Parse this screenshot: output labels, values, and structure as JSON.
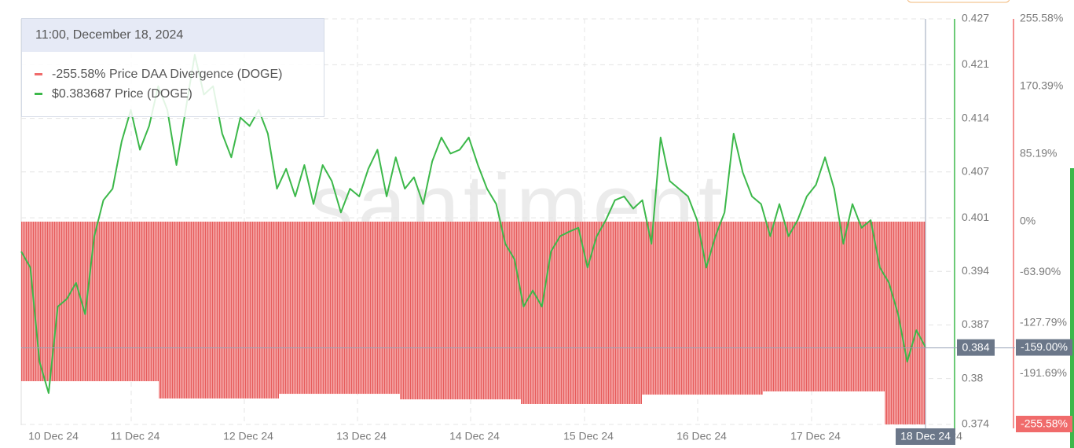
{
  "chart_data": {
    "type": "line",
    "watermark": "santiment",
    "x_labels": [
      "10 Dec 24",
      "11 Dec 24",
      "12 Dec 24",
      "13 Dec 24",
      "14 Dec 24",
      "15 Dec 24",
      "16 Dec 24",
      "17 Dec 24",
      "18 Dec 24"
    ],
    "series": [
      {
        "name": "Price DAA Divergence (DOGE)",
        "color": "#f06b6b",
        "axis": "y2",
        "type": "bar",
        "values": [
          -201.1,
          -222.9,
          -217,
          -224,
          -229.8,
          -218,
          -214,
          -255.58
        ]
      },
      {
        "name": "Price (DOGE)",
        "color": "#3cb84a",
        "type": "line",
        "values": [
          0.3966,
          0.3945,
          0.3822,
          0.3781,
          0.3894,
          0.3904,
          0.3925,
          0.3884,
          0.3986,
          0.4033,
          0.4048,
          0.411,
          0.4151,
          0.4099,
          0.413,
          0.4182,
          0.4151,
          0.4079,
          0.4151,
          0.4223,
          0.4171,
          0.4182,
          0.412,
          0.4089,
          0.4141,
          0.413,
          0.4151,
          0.412,
          0.4048,
          0.4074,
          0.4038,
          0.4079,
          0.4028,
          0.4079,
          0.4058,
          0.4017,
          0.4048,
          0.4038,
          0.4074,
          0.4099,
          0.4038,
          0.4089,
          0.4048,
          0.4063,
          0.4028,
          0.4084,
          0.4115,
          0.4094,
          0.4099,
          0.4115,
          0.4079,
          0.4048,
          0.4028,
          0.3976,
          0.3956,
          0.3894,
          0.3915,
          0.3894,
          0.3966,
          0.3986,
          0.3992,
          0.3997,
          0.3945,
          0.3986,
          0.4007,
          0.4033,
          0.4038,
          0.4022,
          0.4033,
          0.3976,
          0.4115,
          0.4058,
          0.4048,
          0.4038,
          0.4007,
          0.3945,
          0.3986,
          0.4017,
          0.412,
          0.4069,
          0.4038,
          0.4028,
          0.3986,
          0.4028,
          0.3986,
          0.4007,
          0.4038,
          0.4053,
          0.4089,
          0.4048,
          0.3976,
          0.4028,
          0.3997,
          0.4007,
          0.3945,
          0.3925,
          0.3884,
          0.3822,
          0.3863,
          0.3841
        ]
      }
    ],
    "ylim": [
      0.374,
      0.427
    ],
    "yticks": [
      0.374,
      0.38,
      0.387,
      0.394,
      0.401,
      0.407,
      0.414,
      0.421,
      0.427
    ],
    "y2lim": [
      -255.58,
      255.58
    ],
    "y2ticks": [
      {
        "value": -255.58,
        "label": "-255.58%"
      },
      {
        "value": -191.69,
        "label": "-191.69%"
      },
      {
        "value": -127.79,
        "label": "-127.79%"
      },
      {
        "value": -63.9,
        "label": "-63.90%"
      },
      {
        "value": 0,
        "label": "0%"
      },
      {
        "value": 85.19,
        "label": "85.19%"
      },
      {
        "value": 170.39,
        "label": "170.39%"
      },
      {
        "value": 255.58,
        "label": "255.58%"
      }
    ],
    "grid": true,
    "crosshair": {
      "price": 0.384,
      "divergence": -159,
      "divergence_label": "-159.00%"
    },
    "tooltip": {
      "title": "11:00, December 18, 2024",
      "values": [
        -255.58,
        0.383687
      ],
      "value_labels": [
        "-255.58%",
        "$0.383687"
      ]
    }
  }
}
